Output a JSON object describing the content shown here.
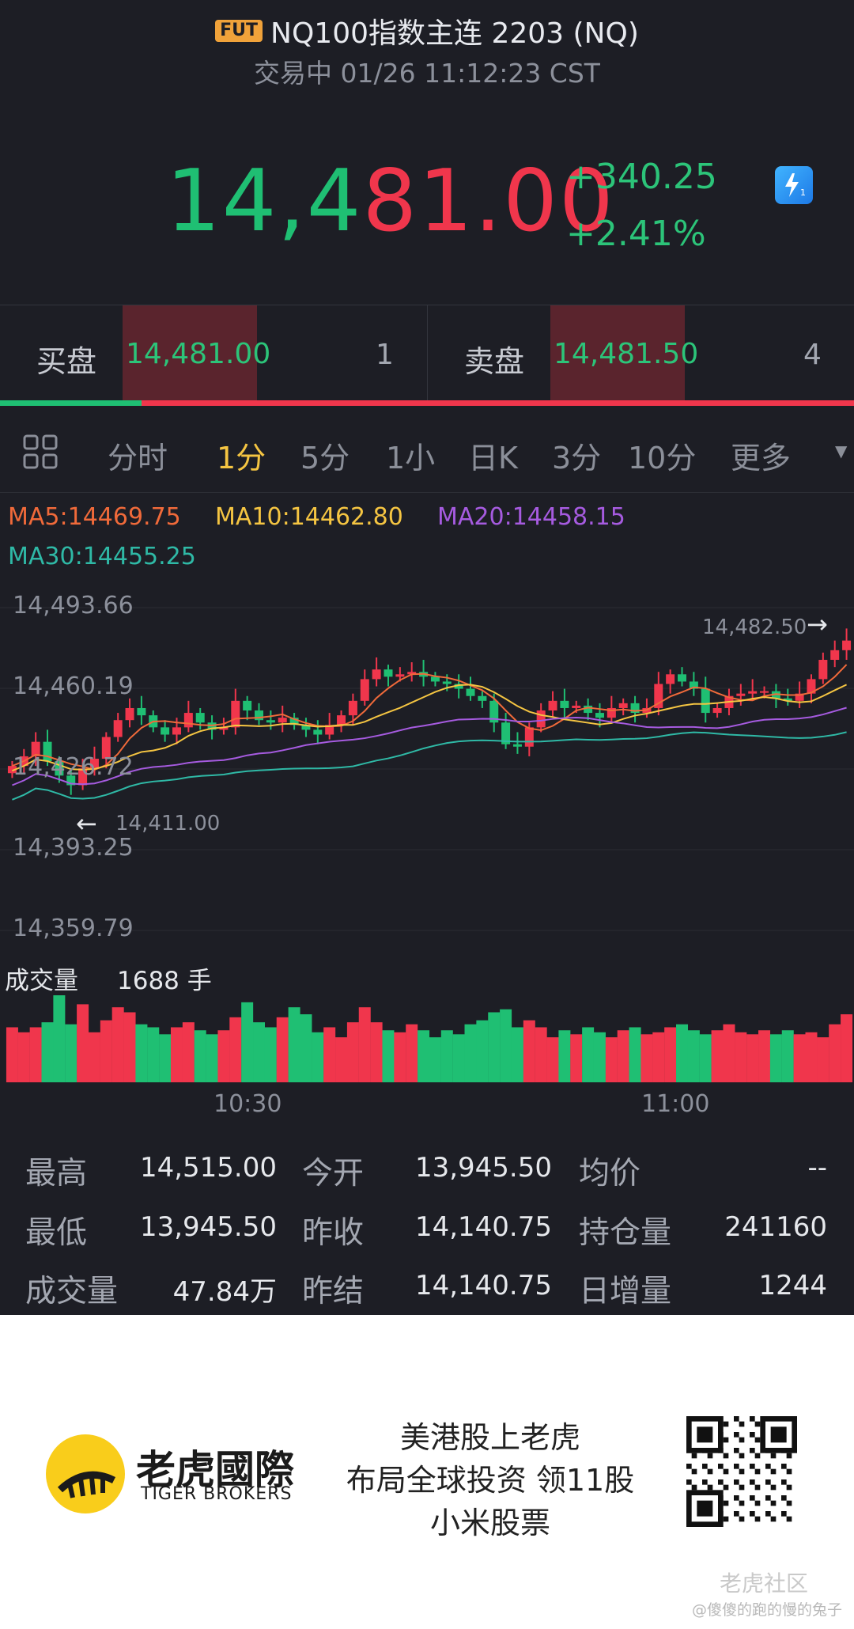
{
  "header": {
    "badge": "FUT",
    "title": "NQ100指数主连 2203 (NQ)",
    "status": "交易中 01/26 11:12:23 CST"
  },
  "quote": {
    "price_part1": "14,4",
    "price_part2": "81.00",
    "change_abs": "+340.25",
    "change_pct": "+2.41%",
    "flash_badge": "1"
  },
  "order_book": {
    "bid_label": "买盘",
    "bid_price": "14,481.00",
    "bid_qty": "1",
    "ask_label": "卖盘",
    "ask_price": "14,481.50",
    "ask_qty": "4",
    "bid_ratio": 0.166
  },
  "tabs": [
    "分时",
    "1分",
    "5分",
    "1小",
    "日K",
    "3分",
    "10分",
    "更多"
  ],
  "active_tab": "1分",
  "ma_legend": {
    "ma5": "MA5:14469.75",
    "ma10": "MA10:14462.80",
    "ma20": "MA20:14458.15",
    "ma30": "MA30:14455.25"
  },
  "chart_data": {
    "type": "candlestick",
    "y_ticks": [
      "14,493.66",
      "14,460.19",
      "14,426.72",
      "14,393.25",
      "14,359.79"
    ],
    "ylim": [
      14359.79,
      14493.66
    ],
    "max_marker": "14,482.50",
    "min_marker": "14,411.00",
    "x_ticks": [
      "10:30",
      "11:00"
    ],
    "volume_label": "成交量",
    "volume_value": "1688 手",
    "colors": {
      "up": "#f0364c",
      "down": "#1fbf73",
      "ma5": "#f06a3a",
      "ma10": "#f5c542",
      "ma20": "#a65be0",
      "ma30": "#2fb9a6"
    },
    "closes": [
      14428,
      14432,
      14438,
      14430,
      14424,
      14420,
      14427,
      14431,
      14440,
      14447,
      14452,
      14449,
      14444,
      14441,
      14444,
      14450,
      14446,
      14443,
      14444,
      14455,
      14451,
      14447,
      14446,
      14448,
      14445,
      14443,
      14441,
      14445,
      14449,
      14455,
      14464,
      14468,
      14465,
      14466,
      14467,
      14465,
      14463,
      14462,
      14460,
      14457,
      14455,
      14446,
      14437,
      14436,
      14444,
      14451,
      14455,
      14452,
      14453,
      14450,
      14448,
      14452,
      14454,
      14450,
      14452,
      14462,
      14466,
      14463,
      14460,
      14450,
      14452,
      14457,
      14458,
      14459,
      14459,
      14456,
      14455,
      14458,
      14464,
      14472,
      14476,
      14480
    ],
    "volumes": [
      55,
      50,
      55,
      60,
      87,
      58,
      78,
      50,
      62,
      75,
      70,
      58,
      55,
      48,
      55,
      60,
      52,
      48,
      52,
      65,
      80,
      60,
      55,
      65,
      75,
      68,
      50,
      55,
      45,
      60,
      75,
      60,
      52,
      50,
      58,
      52,
      45,
      52,
      48,
      58,
      62,
      70,
      73,
      55,
      62,
      55,
      45,
      52,
      48,
      55,
      50,
      45,
      52,
      55,
      48,
      50,
      55,
      58,
      52,
      48,
      52,
      58,
      50,
      48,
      52,
      48,
      52,
      48,
      50,
      45,
      58,
      68
    ]
  },
  "stats": [
    {
      "label": "最高",
      "value": "14,515.00"
    },
    {
      "label": "今开",
      "value": "13,945.50"
    },
    {
      "label": "均价",
      "value": "--"
    },
    {
      "label": "最低",
      "value": "13,945.50"
    },
    {
      "label": "昨收",
      "value": "14,140.75"
    },
    {
      "label": "持仓量",
      "value": "241160"
    },
    {
      "label": "成交量",
      "value": "47.84万"
    },
    {
      "label": "昨结",
      "value": "14,140.75"
    },
    {
      "label": "日增量",
      "value": "1244"
    }
  ],
  "banner": {
    "brand_cn": "老虎國際",
    "brand_en": "TIGER BROKERS",
    "promo_line1": "美港股上老虎",
    "promo_line2": "布局全球投资 领11股",
    "promo_line3": "小米股票",
    "community": "老虎社区",
    "watermark": "@傻傻的跑的慢的兔子"
  }
}
